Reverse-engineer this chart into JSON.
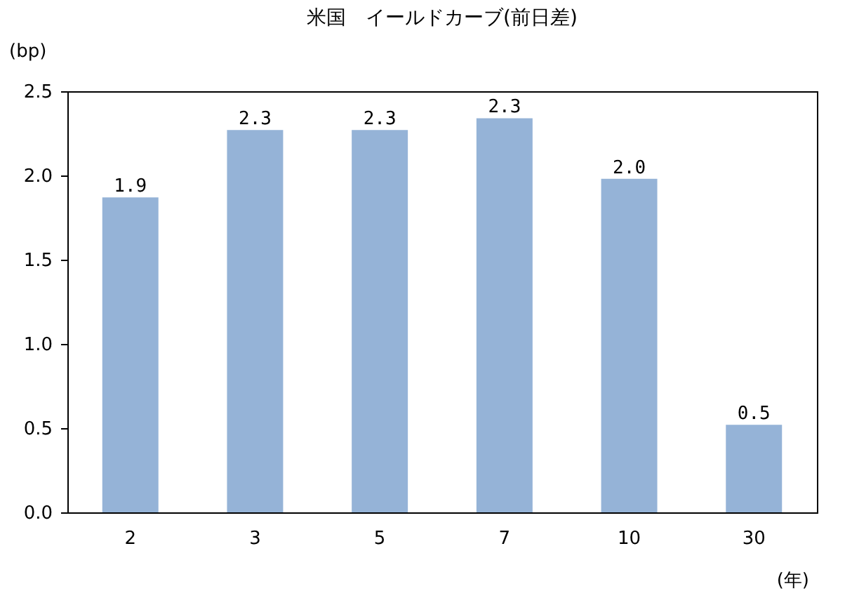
{
  "chart_data": {
    "type": "bar",
    "title": "米国　イールドカーブ(前日差)",
    "ylabel": "(bp)",
    "xlabel": "(年)",
    "categories": [
      "2",
      "3",
      "5",
      "7",
      "10",
      "30"
    ],
    "values": [
      1.87,
      2.27,
      2.27,
      2.34,
      1.98,
      0.52
    ],
    "value_labels": [
      "1.9",
      "2.3",
      "2.3",
      "2.3",
      "2.0",
      "0.5"
    ],
    "color": "#95b3d7",
    "ylim": [
      0,
      2.5
    ],
    "yticks": [
      {
        "value": 0,
        "label": "0.0"
      },
      {
        "value": 0.5,
        "label": "0.5"
      },
      {
        "value": 1,
        "label": "1.0"
      },
      {
        "value": 1.5,
        "label": "1.5"
      },
      {
        "value": 2,
        "label": "2.0"
      },
      {
        "value": 2.5,
        "label": "2.5"
      }
    ],
    "grid": false
  }
}
